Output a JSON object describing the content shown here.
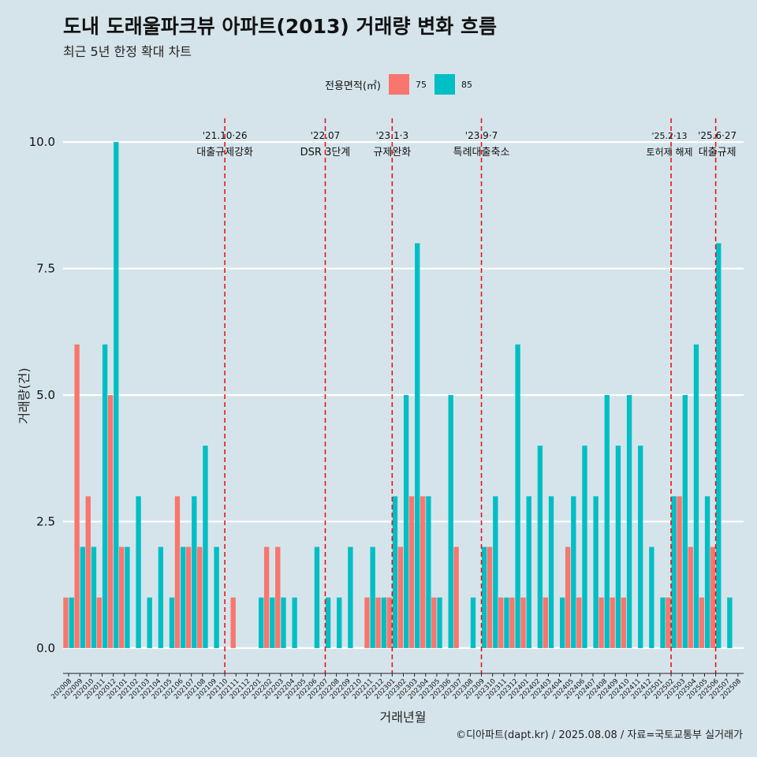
{
  "chart_data": {
    "type": "bar",
    "title": "도내 도래울파크뷰 아파트(2013) 거래량 변화 흐름",
    "subtitle": "최근 5년 한정 확대 차트",
    "xlabel": "거래년월",
    "ylabel": "거래량(건)",
    "caption": "©디아파트(dapt.kr) / 2025.08.08 / 자료=국토교통부 실거래가",
    "legend_title": "전용면적(㎡)",
    "legend_position": "top",
    "ylim": [
      -0.5,
      10.5
    ],
    "y_ticks": [
      0,
      2.5,
      5,
      7.5,
      10
    ],
    "y_tick_labels": [
      "0.0",
      "2.5",
      "5.0",
      "7.5",
      "10.0"
    ],
    "categories": [
      "202008",
      "202009",
      "202010",
      "202011",
      "202012",
      "202101",
      "202102",
      "202103",
      "202104",
      "202105",
      "202106",
      "202107",
      "202108",
      "202109",
      "202110",
      "202111",
      "202112",
      "202201",
      "202202",
      "202203",
      "202204",
      "202205",
      "202206",
      "202207",
      "202208",
      "202209",
      "202210",
      "202211",
      "202212",
      "202301",
      "202302",
      "202303",
      "202304",
      "202305",
      "202306",
      "202307",
      "202308",
      "202309",
      "202310",
      "202311",
      "202312",
      "202401",
      "202402",
      "202403",
      "202404",
      "202405",
      "202406",
      "202407",
      "202408",
      "202409",
      "202410",
      "202411",
      "202412",
      "202501",
      "202502",
      "202503",
      "202504",
      "202505",
      "202506",
      "202507",
      "202508"
    ],
    "series": [
      {
        "name": "75",
        "color": "#f8766d",
        "values": [
          1,
          6,
          3,
          1,
          5,
          2,
          0,
          0,
          0,
          0,
          3,
          2,
          2,
          0,
          0,
          1,
          0,
          0,
          2,
          2,
          0,
          0,
          0,
          0,
          0,
          0,
          0,
          1,
          1,
          1,
          2,
          3,
          3,
          1,
          0,
          2,
          0,
          0,
          2,
          1,
          1,
          1,
          0,
          1,
          0,
          2,
          1,
          0,
          1,
          1,
          1,
          0,
          0,
          0,
          1,
          3,
          2,
          1,
          2,
          0,
          0
        ]
      },
      {
        "name": "85",
        "color": "#00bfc4",
        "values": [
          1,
          2,
          2,
          6,
          10,
          2,
          3,
          1,
          2,
          1,
          2,
          3,
          4,
          2,
          0,
          0,
          0,
          1,
          1,
          1,
          1,
          0,
          2,
          1,
          1,
          2,
          0,
          2,
          1,
          3,
          5,
          8,
          3,
          1,
          5,
          0,
          1,
          2,
          3,
          1,
          6,
          3,
          4,
          3,
          1,
          3,
          4,
          3,
          5,
          4,
          5,
          4,
          2,
          1,
          3,
          5,
          6,
          3,
          8,
          1,
          0
        ]
      }
    ],
    "events": [
      {
        "date": "'21.10·26",
        "label": "대출규제강화",
        "month": "202110"
      },
      {
        "date": "'22.07",
        "label": "DSR 3단계",
        "month": "202207"
      },
      {
        "date": "'23.1·3",
        "label": "규제완화",
        "month": "202301"
      },
      {
        "date": "'23.9·7",
        "label": "특례대출축소",
        "month": "202309"
      },
      {
        "date": "'25.2·13",
        "label": "토허제 해제",
        "month": "202502"
      },
      {
        "date": "'25.6·27",
        "label": "대출규제",
        "month": "202506"
      }
    ],
    "background": "#d5e4eb",
    "event_line_color": "#e8141b"
  }
}
